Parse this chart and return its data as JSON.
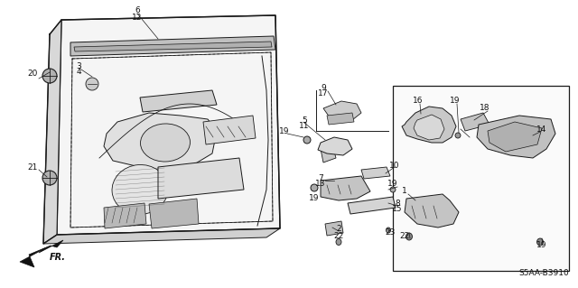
{
  "bg_color": "#ffffff",
  "line_color": "#1a1a1a",
  "fig_width": 6.4,
  "fig_height": 3.19,
  "diagram_code": "S5AA-B3910",
  "dpi": 100
}
